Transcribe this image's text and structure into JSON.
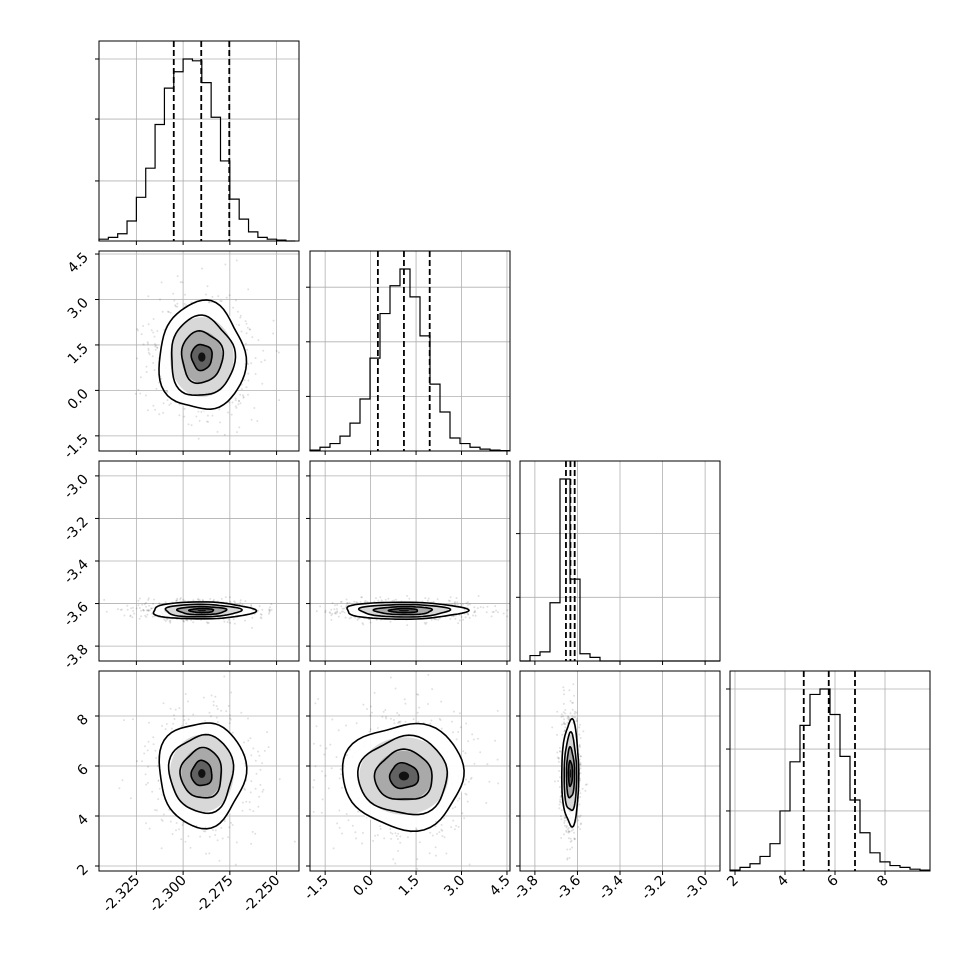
{
  "chart_data": {
    "type": "corner",
    "parameters": [
      {
        "lim": [
          -2.345,
          -2.238
        ],
        "ticks": [
          "-2.325",
          "-2.300",
          "-2.275",
          "-2.250"
        ],
        "tick_values": [
          -2.325,
          -2.3,
          -2.275,
          -2.25
        ],
        "quantiles": [
          -2.305,
          -2.2903,
          -2.2753
        ],
        "histogram": {
          "edges_start": -2.345,
          "bin_width": 0.005,
          "counts": [
            0.01,
            0.02,
            0.04,
            0.11,
            0.24,
            0.4,
            0.64,
            0.84,
            0.93,
            1.0,
            0.99,
            0.87,
            0.68,
            0.44,
            0.23,
            0.12,
            0.05,
            0.02,
            0.01,
            0.005,
            0.0
          ]
        },
        "hist_ticks": [
          0.33,
          0.67,
          1.0
        ]
      },
      {
        "lim": [
          -2.0,
          4.6
        ],
        "ticks": [
          "-1.5",
          "0.0",
          "1.5",
          "3.0",
          "4.5"
        ],
        "tick_values": [
          -1.5,
          0.0,
          1.5,
          3.0,
          4.5
        ],
        "quantiles": [
          0.24,
          1.1,
          1.95
        ],
        "histogram": {
          "edges_start": -2.0,
          "bin_width": 0.33,
          "counts": [
            0.005,
            0.02,
            0.04,
            0.08,
            0.15,
            0.28,
            0.5,
            0.74,
            0.89,
            0.98,
            0.83,
            0.62,
            0.36,
            0.21,
            0.07,
            0.04,
            0.02,
            0.01,
            0.005,
            0.002
          ]
        },
        "hist_ticks": [
          0.3,
          0.6,
          0.9
        ]
      },
      {
        "lim": [
          -3.87,
          -2.93
        ],
        "ticks": [
          "-3.8",
          "-3.6",
          "-3.4",
          "-3.2",
          "-3.0"
        ],
        "tick_values": [
          -3.8,
          -3.6,
          -3.4,
          -3.2,
          -3.0
        ],
        "left_ticks": [
          "-3.8",
          "-3.6",
          "-3.4",
          "-3.2",
          "-3.0"
        ],
        "quantiles": [
          -3.654,
          -3.633,
          -3.613
        ],
        "histogram": {
          "edges_start": -3.87,
          "bin_width": 0.047,
          "counts": [
            0.0,
            0.03,
            0.05,
            0.32,
            1.0,
            0.45,
            0.04,
            0.02,
            0.0,
            0.0,
            0.0,
            0.0,
            0.0,
            0.0,
            0.0,
            0.0,
            0.0,
            0.0,
            0.0,
            0.0
          ]
        },
        "hist_ticks": [
          0.35,
          0.7
        ]
      },
      {
        "lim": [
          1.8,
          9.8
        ],
        "ticks": [
          "2",
          "4",
          "6",
          "8"
        ],
        "tick_values": [
          2,
          4,
          6,
          8
        ],
        "left_ticks": [
          "2",
          "4",
          "6",
          "8"
        ],
        "quantiles": [
          4.75,
          5.75,
          6.8
        ],
        "histogram": {
          "edges_start": 1.8,
          "bin_width": 0.4,
          "counts": [
            0.005,
            0.02,
            0.04,
            0.08,
            0.15,
            0.33,
            0.6,
            0.8,
            0.97,
            1.0,
            0.86,
            0.63,
            0.39,
            0.21,
            0.1,
            0.05,
            0.03,
            0.02,
            0.01,
            0.005
          ]
        },
        "hist_ticks": [
          0.33,
          0.67,
          1.0
        ]
      }
    ],
    "pairs": [
      {
        "row": 1,
        "col": 0,
        "center": [
          -2.29,
          1.1
        ],
        "spread": [
          0.011,
          0.85
        ],
        "corr": 0.0
      },
      {
        "row": 2,
        "col": 0,
        "center": [
          -2.29,
          -3.633
        ],
        "spread": [
          0.013,
          0.019
        ],
        "corr": 0.0
      },
      {
        "row": 2,
        "col": 1,
        "center": [
          1.1,
          -3.633
        ],
        "spread": [
          0.95,
          0.019
        ],
        "corr": 0.0
      },
      {
        "row": 3,
        "col": 0,
        "center": [
          -2.29,
          5.7
        ],
        "spread": [
          0.011,
          1.0
        ],
        "corr": 0.0
      },
      {
        "row": 3,
        "col": 1,
        "center": [
          1.1,
          5.6
        ],
        "spread": [
          0.95,
          1.0
        ],
        "corr": 0.0
      },
      {
        "row": 3,
        "col": 2,
        "center": [
          -3.633,
          5.7
        ],
        "spread": [
          0.019,
          1.0
        ],
        "corr": 0.0
      }
    ],
    "colors": {
      "line": "#000000",
      "grid": "#b0b0b0",
      "points": "#000000"
    }
  }
}
